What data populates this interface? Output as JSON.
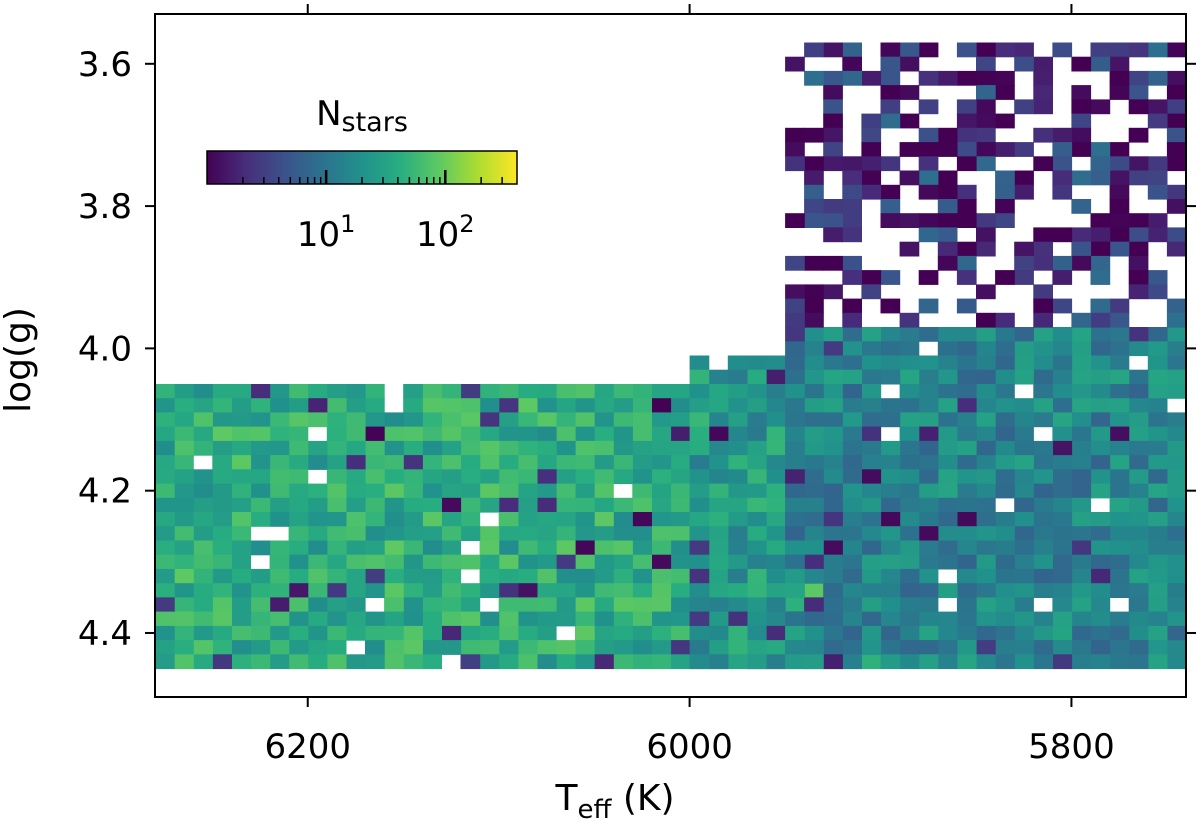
{
  "chart_data": {
    "type": "heatmap",
    "xlabel": {
      "main": "T",
      "sub": "eff",
      "unit": " (K)"
    },
    "ylabel": "log(g)",
    "x_range": [
      6280,
      5740
    ],
    "y_range": [
      3.53,
      4.49
    ],
    "x_axis_reversed": true,
    "y_axis_reversed": true,
    "x_ticks": [
      6200,
      6000,
      5800
    ],
    "y_ticks": [
      3.6,
      3.8,
      4.0,
      4.2,
      4.4
    ],
    "x_tick_labels": [
      "6200",
      "6000",
      "5800"
    ],
    "y_tick_labels": [
      "3.6",
      "3.8",
      "4.0",
      "4.2",
      "4.4"
    ],
    "colormap": "viridis",
    "color_scale": "log",
    "colorbar": {
      "label_main": "N",
      "label_sub": "stars",
      "range": [
        1,
        400
      ],
      "ticks": [
        10,
        100
      ],
      "tick_labels": [
        [
          "10",
          "1"
        ],
        [
          "10",
          "2"
        ]
      ],
      "placement": "upper-left"
    },
    "bin_width_K": 10,
    "bin_height_logg": 0.02,
    "regions": [
      {
        "teff": [
          5900,
          6280
        ],
        "logg": [
          4.05,
          4.45
        ],
        "typical_count": 40
      },
      {
        "teff": [
          5950,
          6000
        ],
        "logg": [
          4.01,
          4.45
        ],
        "typical_count": 25
      },
      {
        "teff": [
          5740,
          5950
        ],
        "logg": [
          3.97,
          4.45
        ],
        "typical_count": 15
      },
      {
        "teff": [
          5740,
          5950
        ],
        "logg": [
          3.57,
          3.97
        ],
        "typical_count": 2
      }
    ]
  }
}
